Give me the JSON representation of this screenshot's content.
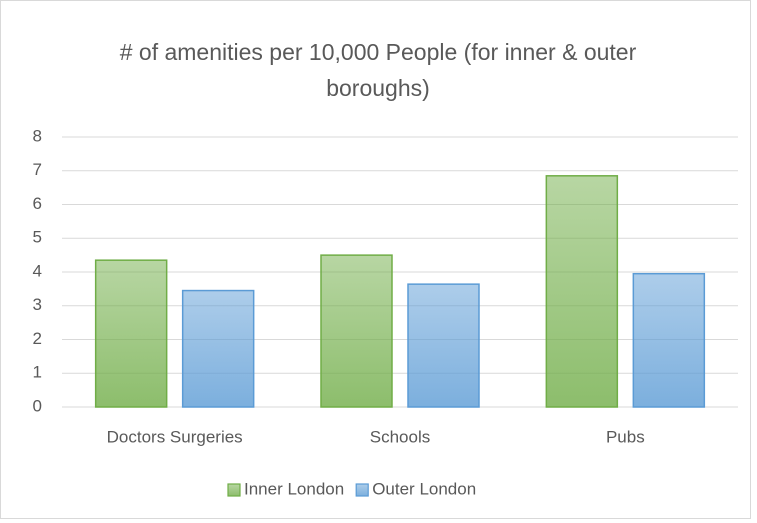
{
  "chart_data": {
    "type": "bar",
    "title": "# of amenities per 10,000 People (for inner & outer boroughs)",
    "categories": [
      "Doctors Surgeries",
      "Schools",
      "Pubs"
    ],
    "series": [
      {
        "name": "Inner London",
        "color": "#70ad47",
        "values": [
          4.35,
          4.5,
          6.85
        ]
      },
      {
        "name": "Outer London",
        "color": "#5b9bd5",
        "values": [
          3.45,
          3.64,
          3.95
        ]
      }
    ],
    "ylim": [
      0,
      8
    ],
    "yticks": [
      0,
      1,
      2,
      3,
      4,
      5,
      6,
      7,
      8
    ],
    "grid": true,
    "legend": "bottom"
  }
}
